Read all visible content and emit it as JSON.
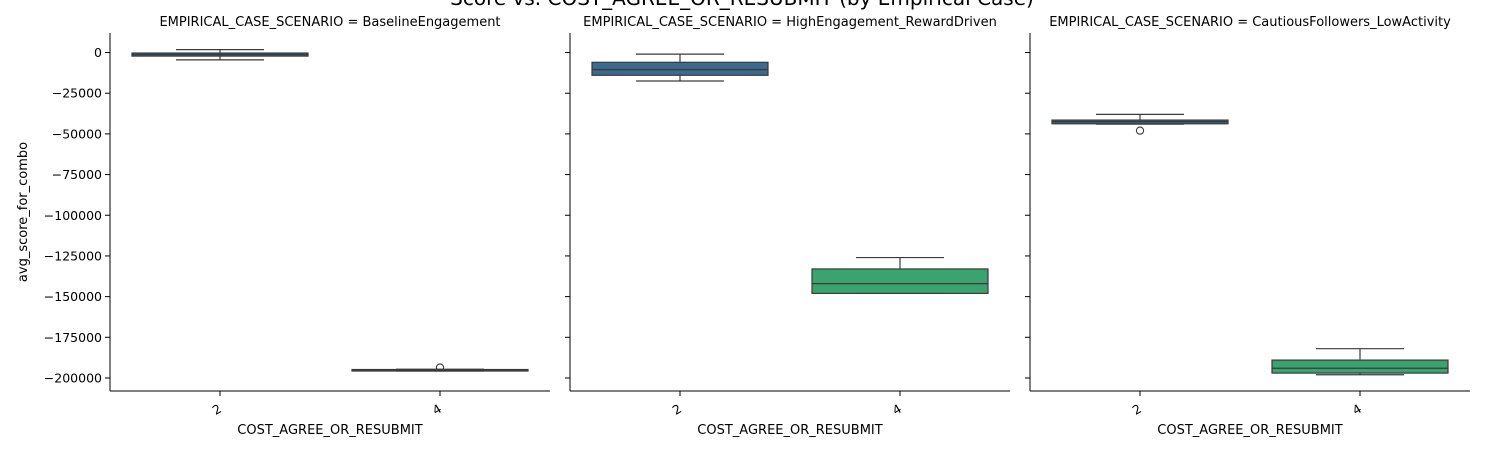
{
  "figure_title": "Score vs. COST_AGREE_OR_RESUBMIT (by Empirical Case)",
  "colors": {
    "box_2": "#3b6a8c",
    "box_4": "#3aa36f",
    "line": "#3a3a3a",
    "axis": "#000000"
  },
  "chart_data": {
    "type": "box",
    "title": "Score vs. COST_AGREE_OR_RESUBMIT (by Empirical Case)",
    "xlabel": "COST_AGREE_OR_RESUBMIT",
    "ylabel": "avg_score_for_combo",
    "categories": [
      "2",
      "4"
    ],
    "ylim": [
      -208000,
      12000
    ],
    "yticks": [
      0,
      -25000,
      -50000,
      -75000,
      -100000,
      -125000,
      -150000,
      -175000,
      -200000
    ],
    "ytick_labels": [
      "0",
      "−25000",
      "−50000",
      "−75000",
      "−100000",
      "−125000",
      "−150000",
      "−175000",
      "−200000"
    ],
    "grid": false,
    "panels": [
      {
        "title": "EMPIRICAL_CASE_SCENARIO = BaselineEngagement",
        "boxes": [
          {
            "category": "2",
            "whisker_low": -4500,
            "q1": -2200,
            "median": -1200,
            "q3": -300,
            "whisker_high": 1800,
            "outliers": []
          },
          {
            "category": "4",
            "whisker_low": -195700,
            "q1": -195500,
            "median": -195100,
            "q3": -194800,
            "whisker_high": -194600,
            "outliers": [
              -193600
            ]
          }
        ]
      },
      {
        "title": "EMPIRICAL_CASE_SCENARIO = HighEngagement_RewardDriven",
        "boxes": [
          {
            "category": "2",
            "whisker_low": -17500,
            "q1": -14000,
            "median": -10500,
            "q3": -6000,
            "whisker_high": -1000,
            "outliers": []
          },
          {
            "category": "4",
            "whisker_low": -148000,
            "q1": -148000,
            "median": -142000,
            "q3": -133000,
            "whisker_high": -126000,
            "outliers": []
          }
        ]
      },
      {
        "title": "EMPIRICAL_CASE_SCENARIO = CautiousFollowers_LowActivity",
        "boxes": [
          {
            "category": "2",
            "whisker_low": -44000,
            "q1": -43800,
            "median": -42500,
            "q3": -41500,
            "whisker_high": -38000,
            "outliers": [
              -48000
            ]
          },
          {
            "category": "4",
            "whisker_low": -198000,
            "q1": -197000,
            "median": -194000,
            "q3": -189000,
            "whisker_high": -182000,
            "outliers": []
          }
        ]
      }
    ]
  }
}
